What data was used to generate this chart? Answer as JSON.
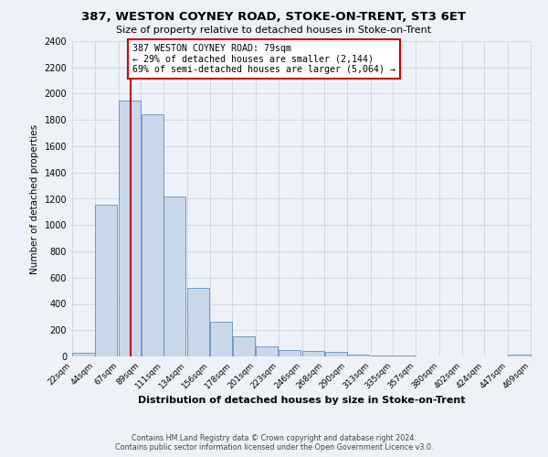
{
  "title": "387, WESTON COYNEY ROAD, STOKE-ON-TRENT, ST3 6ET",
  "subtitle": "Size of property relative to detached houses in Stoke-on-Trent",
  "xlabel": "Distribution of detached houses by size in Stoke-on-Trent",
  "ylabel": "Number of detached properties",
  "bar_color": "#c8d8ea",
  "bar_edge_color": "#6090b8",
  "bar_left_edges": [
    22,
    44,
    67,
    89,
    111,
    134,
    156,
    178,
    201,
    223,
    246,
    268,
    290,
    313,
    335,
    357,
    380,
    402,
    424,
    447
  ],
  "bar_heights": [
    25,
    1155,
    1950,
    1840,
    1220,
    520,
    265,
    150,
    80,
    50,
    45,
    35,
    15,
    10,
    10,
    0,
    0,
    0,
    0,
    15
  ],
  "bin_width": 22,
  "tick_labels": [
    "22sqm",
    "44sqm",
    "67sqm",
    "89sqm",
    "111sqm",
    "134sqm",
    "156sqm",
    "178sqm",
    "201sqm",
    "223sqm",
    "246sqm",
    "268sqm",
    "290sqm",
    "313sqm",
    "335sqm",
    "357sqm",
    "380sqm",
    "402sqm",
    "424sqm",
    "447sqm",
    "469sqm"
  ],
  "vline_x": 79,
  "vline_color": "#cc0000",
  "annotation_text": "387 WESTON COYNEY ROAD: 79sqm\n← 29% of detached houses are smaller (2,144)\n69% of semi-detached houses are larger (5,064) →",
  "annotation_box_color": "#ffffff",
  "annotation_box_edge_color": "#cc0000",
  "ylim": [
    0,
    2400
  ],
  "yticks": [
    0,
    200,
    400,
    600,
    800,
    1000,
    1200,
    1400,
    1600,
    1800,
    2000,
    2200,
    2400
  ],
  "grid_color": "#cdd8e8",
  "footer1": "Contains HM Land Registry data © Crown copyright and database right 2024.",
  "footer2": "Contains public sector information licensed under the Open Government Licence v3.0.",
  "background_color": "#eef2f8"
}
